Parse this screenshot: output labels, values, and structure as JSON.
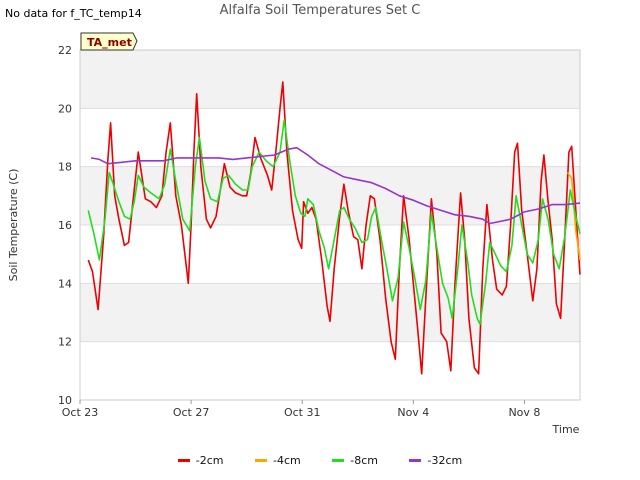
{
  "header": {
    "title": "Alfalfa Soil Temperatures Set C",
    "no_data_note": "No data for f_TC_temp14"
  },
  "badge": {
    "label": "TA_met",
    "fill": "#ffffcc",
    "text_color": "#8b0000"
  },
  "colors": {
    "band": "#f2f2f2",
    "grid": "#dddddd",
    "-2cm": "#ee0000",
    "-4cm": "#ffa500",
    "-8cm": "#22dd22",
    "-32cm": "#9933cc"
  },
  "chart_data": {
    "type": "line",
    "title": "Alfalfa Soil Temperatures Set C",
    "xlabel": "Time",
    "ylabel": "Soil Temperature (C)",
    "xlim": [
      23,
      41
    ],
    "ylim": [
      10,
      22
    ],
    "x_ticks": [
      {
        "value": 23,
        "label": "Oct 23"
      },
      {
        "value": 27,
        "label": "Oct 27"
      },
      {
        "value": 31,
        "label": "Oct 31"
      },
      {
        "value": 35,
        "label": "Nov 4"
      },
      {
        "value": 39,
        "label": "Nov 8"
      }
    ],
    "y_ticks": [
      10,
      12,
      14,
      16,
      18,
      20,
      22
    ],
    "grid": true,
    "legend_position": "bottom",
    "series": [
      {
        "name": "-2cm",
        "points": [
          [
            23.3,
            14.8
          ],
          [
            23.45,
            14.4
          ],
          [
            23.65,
            13.1
          ],
          [
            23.85,
            15.6
          ],
          [
            24.0,
            18.2
          ],
          [
            24.1,
            19.5
          ],
          [
            24.25,
            17.0
          ],
          [
            24.4,
            16.2
          ],
          [
            24.6,
            15.3
          ],
          [
            24.75,
            15.4
          ],
          [
            24.95,
            17.2
          ],
          [
            25.1,
            18.5
          ],
          [
            25.35,
            16.9
          ],
          [
            25.55,
            16.8
          ],
          [
            25.75,
            16.6
          ],
          [
            25.95,
            17.0
          ],
          [
            26.1,
            18.5
          ],
          [
            26.25,
            19.5
          ],
          [
            26.45,
            17.0
          ],
          [
            26.65,
            16.0
          ],
          [
            26.9,
            14.0
          ],
          [
            27.0,
            16.0
          ],
          [
            27.1,
            18.5
          ],
          [
            27.2,
            20.5
          ],
          [
            27.35,
            18.0
          ],
          [
            27.55,
            16.2
          ],
          [
            27.7,
            15.9
          ],
          [
            27.9,
            16.3
          ],
          [
            28.1,
            17.5
          ],
          [
            28.2,
            18.1
          ],
          [
            28.4,
            17.3
          ],
          [
            28.6,
            17.1
          ],
          [
            28.85,
            17.0
          ],
          [
            29.0,
            17.0
          ],
          [
            29.15,
            17.8
          ],
          [
            29.3,
            19.0
          ],
          [
            29.5,
            18.3
          ],
          [
            29.75,
            17.7
          ],
          [
            29.9,
            17.2
          ],
          [
            30.05,
            18.5
          ],
          [
            30.2,
            20.0
          ],
          [
            30.3,
            20.9
          ],
          [
            30.45,
            18.5
          ],
          [
            30.65,
            16.5
          ],
          [
            30.85,
            15.5
          ],
          [
            30.98,
            15.2
          ],
          [
            31.05,
            16.8
          ],
          [
            31.2,
            16.4
          ],
          [
            31.35,
            16.6
          ],
          [
            31.5,
            16.2
          ],
          [
            31.7,
            14.8
          ],
          [
            31.9,
            13.2
          ],
          [
            32.0,
            12.7
          ],
          [
            32.15,
            14.5
          ],
          [
            32.35,
            16.3
          ],
          [
            32.5,
            17.4
          ],
          [
            32.65,
            16.5
          ],
          [
            32.85,
            15.6
          ],
          [
            33.0,
            15.5
          ],
          [
            33.15,
            14.5
          ],
          [
            33.3,
            16.0
          ],
          [
            33.45,
            17.0
          ],
          [
            33.6,
            16.9
          ],
          [
            33.8,
            15.5
          ],
          [
            34.0,
            13.5
          ],
          [
            34.2,
            12.0
          ],
          [
            34.35,
            11.4
          ],
          [
            34.5,
            14.5
          ],
          [
            34.65,
            17.0
          ],
          [
            34.85,
            15.5
          ],
          [
            35.0,
            14.0
          ],
          [
            35.15,
            12.5
          ],
          [
            35.3,
            10.9
          ],
          [
            35.45,
            13.5
          ],
          [
            35.65,
            16.9
          ],
          [
            35.85,
            15.0
          ],
          [
            36.0,
            12.3
          ],
          [
            36.2,
            12.0
          ],
          [
            36.35,
            11.0
          ],
          [
            36.5,
            14.0
          ],
          [
            36.7,
            17.1
          ],
          [
            36.85,
            15.5
          ],
          [
            37.0,
            12.8
          ],
          [
            37.2,
            11.1
          ],
          [
            37.35,
            10.9
          ],
          [
            37.5,
            14.5
          ],
          [
            37.65,
            16.7
          ],
          [
            37.85,
            14.8
          ],
          [
            38.0,
            13.8
          ],
          [
            38.2,
            13.6
          ],
          [
            38.35,
            13.9
          ],
          [
            38.5,
            16.0
          ],
          [
            38.65,
            18.5
          ],
          [
            38.75,
            18.8
          ],
          [
            38.9,
            16.5
          ],
          [
            39.1,
            15.0
          ],
          [
            39.3,
            13.4
          ],
          [
            39.45,
            14.5
          ],
          [
            39.6,
            17.5
          ],
          [
            39.7,
            18.4
          ],
          [
            39.85,
            16.8
          ],
          [
            40.0,
            15.5
          ],
          [
            40.15,
            13.3
          ],
          [
            40.3,
            12.8
          ],
          [
            40.45,
            15.5
          ],
          [
            40.6,
            18.5
          ],
          [
            40.7,
            18.7
          ],
          [
            40.85,
            16.5
          ],
          [
            41.0,
            14.3
          ]
        ]
      },
      {
        "name": "-4cm",
        "points": [
          [
            40.55,
            17.8
          ],
          [
            40.7,
            17.6
          ],
          [
            40.85,
            15.8
          ],
          [
            41.0,
            14.8
          ]
        ]
      },
      {
        "name": "-8cm",
        "points": [
          [
            23.3,
            16.5
          ],
          [
            23.5,
            15.7
          ],
          [
            23.7,
            14.8
          ],
          [
            23.9,
            16.2
          ],
          [
            24.05,
            17.8
          ],
          [
            24.2,
            17.4
          ],
          [
            24.4,
            16.8
          ],
          [
            24.6,
            16.3
          ],
          [
            24.8,
            16.2
          ],
          [
            24.95,
            16.8
          ],
          [
            25.1,
            17.7
          ],
          [
            25.3,
            17.3
          ],
          [
            25.55,
            17.1
          ],
          [
            25.85,
            16.9
          ],
          [
            26.05,
            17.4
          ],
          [
            26.25,
            18.6
          ],
          [
            26.45,
            17.5
          ],
          [
            26.7,
            16.2
          ],
          [
            26.95,
            15.8
          ],
          [
            27.15,
            18.0
          ],
          [
            27.3,
            19.0
          ],
          [
            27.5,
            17.5
          ],
          [
            27.7,
            16.9
          ],
          [
            27.95,
            16.8
          ],
          [
            28.15,
            17.6
          ],
          [
            28.35,
            17.7
          ],
          [
            28.6,
            17.4
          ],
          [
            28.85,
            17.2
          ],
          [
            29.05,
            17.2
          ],
          [
            29.2,
            18.0
          ],
          [
            29.45,
            18.5
          ],
          [
            29.7,
            18.2
          ],
          [
            29.95,
            18.0
          ],
          [
            30.2,
            18.5
          ],
          [
            30.35,
            19.6
          ],
          [
            30.55,
            18.2
          ],
          [
            30.75,
            17.0
          ],
          [
            30.95,
            16.4
          ],
          [
            31.1,
            16.3
          ],
          [
            31.2,
            16.9
          ],
          [
            31.4,
            16.7
          ],
          [
            31.6,
            15.8
          ],
          [
            31.8,
            15.2
          ],
          [
            31.95,
            14.5
          ],
          [
            32.15,
            15.5
          ],
          [
            32.35,
            16.5
          ],
          [
            32.5,
            16.6
          ],
          [
            32.7,
            16.2
          ],
          [
            32.9,
            15.9
          ],
          [
            33.15,
            15.4
          ],
          [
            33.35,
            15.5
          ],
          [
            33.5,
            16.3
          ],
          [
            33.65,
            16.6
          ],
          [
            33.85,
            15.5
          ],
          [
            34.05,
            14.5
          ],
          [
            34.25,
            13.4
          ],
          [
            34.45,
            14.2
          ],
          [
            34.65,
            16.1
          ],
          [
            34.85,
            15.2
          ],
          [
            35.05,
            14.2
          ],
          [
            35.25,
            13.1
          ],
          [
            35.45,
            14.1
          ],
          [
            35.65,
            16.4
          ],
          [
            35.85,
            15.2
          ],
          [
            36.05,
            14.0
          ],
          [
            36.25,
            13.5
          ],
          [
            36.4,
            12.8
          ],
          [
            36.6,
            14.5
          ],
          [
            36.75,
            16.0
          ],
          [
            36.95,
            14.8
          ],
          [
            37.1,
            13.6
          ],
          [
            37.3,
            12.8
          ],
          [
            37.4,
            12.6
          ],
          [
            37.6,
            14.0
          ],
          [
            37.75,
            15.4
          ],
          [
            37.95,
            15.0
          ],
          [
            38.15,
            14.6
          ],
          [
            38.35,
            14.4
          ],
          [
            38.55,
            15.3
          ],
          [
            38.7,
            17.0
          ],
          [
            38.9,
            16.0
          ],
          [
            39.1,
            15.0
          ],
          [
            39.3,
            14.7
          ],
          [
            39.5,
            15.5
          ],
          [
            39.65,
            16.9
          ],
          [
            39.85,
            16.2
          ],
          [
            40.05,
            15.0
          ],
          [
            40.25,
            14.5
          ],
          [
            40.45,
            15.6
          ],
          [
            40.65,
            17.2
          ],
          [
            40.85,
            16.3
          ],
          [
            41.0,
            15.7
          ]
        ]
      },
      {
        "name": "-32cm",
        "points": [
          [
            23.4,
            18.3
          ],
          [
            23.7,
            18.25
          ],
          [
            24.0,
            18.1
          ],
          [
            24.5,
            18.15
          ],
          [
            25.0,
            18.2
          ],
          [
            25.5,
            18.2
          ],
          [
            26.0,
            18.2
          ],
          [
            26.5,
            18.3
          ],
          [
            27.0,
            18.3
          ],
          [
            27.5,
            18.3
          ],
          [
            28.0,
            18.3
          ],
          [
            28.5,
            18.25
          ],
          [
            29.0,
            18.3
          ],
          [
            29.5,
            18.35
          ],
          [
            30.0,
            18.4
          ],
          [
            30.5,
            18.6
          ],
          [
            30.8,
            18.65
          ],
          [
            31.2,
            18.4
          ],
          [
            31.6,
            18.1
          ],
          [
            32.0,
            17.9
          ],
          [
            32.5,
            17.65
          ],
          [
            33.0,
            17.55
          ],
          [
            33.5,
            17.45
          ],
          [
            34.0,
            17.25
          ],
          [
            34.5,
            17.0
          ],
          [
            35.0,
            16.85
          ],
          [
            35.5,
            16.65
          ],
          [
            36.0,
            16.5
          ],
          [
            36.5,
            16.35
          ],
          [
            37.0,
            16.3
          ],
          [
            37.5,
            16.2
          ],
          [
            37.75,
            16.05
          ],
          [
            38.0,
            16.1
          ],
          [
            38.5,
            16.2
          ],
          [
            39.0,
            16.45
          ],
          [
            39.5,
            16.55
          ],
          [
            40.0,
            16.7
          ],
          [
            40.5,
            16.7
          ],
          [
            41.0,
            16.75
          ]
        ]
      }
    ]
  }
}
